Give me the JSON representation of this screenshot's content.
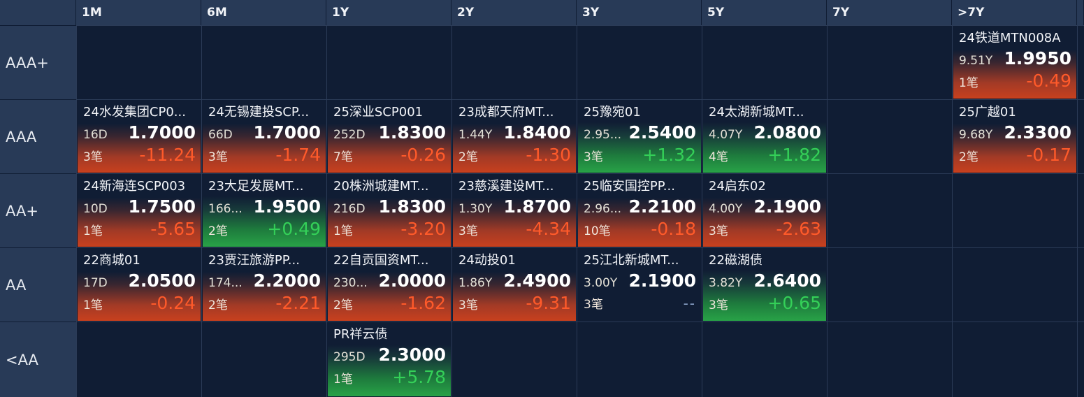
{
  "columns": [
    "1M",
    "6M",
    "1Y",
    "2Y",
    "3Y",
    "5Y",
    "7Y",
    ">7Y"
  ],
  "ratings": [
    "AAA+",
    "AAA",
    "AA+",
    "AA",
    "<AA"
  ],
  "cells": {
    "0_7": {
      "name": "24铁道MTN008A",
      "term": "9.51Y",
      "yield": "1.9950",
      "count": "1笔",
      "change": "-0.49",
      "dir": "neg"
    },
    "1_0": {
      "name": "24水发集团CP0...",
      "term": "16D",
      "yield": "1.7000",
      "count": "3笔",
      "change": "-11.24",
      "dir": "neg"
    },
    "1_1": {
      "name": "24无锡建投SCP...",
      "term": "66D",
      "yield": "1.7000",
      "count": "3笔",
      "change": "-1.74",
      "dir": "neg"
    },
    "1_2": {
      "name": "25深业SCP001",
      "term": "252D",
      "yield": "1.8300",
      "count": "7笔",
      "change": "-0.26",
      "dir": "neg"
    },
    "1_3": {
      "name": "23成都天府MT...",
      "term": "1.44Y",
      "yield": "1.8400",
      "count": "2笔",
      "change": "-1.30",
      "dir": "neg"
    },
    "1_4": {
      "name": "25豫宛01",
      "term": "2.95...",
      "yield": "2.5400",
      "count": "3笔",
      "change": "+1.32",
      "dir": "pos"
    },
    "1_5": {
      "name": "24太湖新城MT...",
      "term": "4.07Y",
      "yield": "2.0800",
      "count": "4笔",
      "change": "+1.82",
      "dir": "pos"
    },
    "1_7": {
      "name": "25广越01",
      "term": "9.68Y",
      "yield": "2.3300",
      "count": "2笔",
      "change": "-0.17",
      "dir": "neg"
    },
    "2_0": {
      "name": "24新海连SCP003",
      "term": "10D",
      "yield": "1.7500",
      "count": "1笔",
      "change": "-5.65",
      "dir": "neg"
    },
    "2_1": {
      "name": "23大足发展MT...",
      "term": "166...",
      "yield": "1.9500",
      "count": "2笔",
      "change": "+0.49",
      "dir": "pos"
    },
    "2_2": {
      "name": "20株洲城建MT...",
      "term": "216D",
      "yield": "1.8300",
      "count": "1笔",
      "change": "-3.20",
      "dir": "neg"
    },
    "2_3": {
      "name": "23慈溪建设MT...",
      "term": "1.30Y",
      "yield": "1.8700",
      "count": "3笔",
      "change": "-4.34",
      "dir": "neg"
    },
    "2_4": {
      "name": "25临安国控PP...",
      "term": "2.96...",
      "yield": "2.2100",
      "count": "10笔",
      "change": "-0.18",
      "dir": "neg"
    },
    "2_5": {
      "name": "24启东02",
      "term": "4.00Y",
      "yield": "2.1900",
      "count": "3笔",
      "change": "-2.63",
      "dir": "neg"
    },
    "3_0": {
      "name": "22商城01",
      "term": "17D",
      "yield": "2.0500",
      "count": "1笔",
      "change": "-0.24",
      "dir": "neg"
    },
    "3_1": {
      "name": "23贾汪旅游PP...",
      "term": "174...",
      "yield": "2.2000",
      "count": "2笔",
      "change": "-2.21",
      "dir": "neg"
    },
    "3_2": {
      "name": "22自贡国资MT...",
      "term": "230...",
      "yield": "2.0000",
      "count": "2笔",
      "change": "-1.62",
      "dir": "neg"
    },
    "3_3": {
      "name": "24动投01",
      "term": "1.86Y",
      "yield": "2.4900",
      "count": "3笔",
      "change": "-9.31",
      "dir": "neg"
    },
    "3_4": {
      "name": "25江北新城MT...",
      "term": "3.00Y",
      "yield": "2.1900",
      "count": "3笔",
      "change": "--",
      "dir": "none"
    },
    "3_5": {
      "name": "22磁湖债",
      "term": "3.82Y",
      "yield": "2.6400",
      "count": "3笔",
      "change": "+0.65",
      "dir": "pos"
    },
    "4_2": {
      "name": "PR祥云债",
      "term": "295D",
      "yield": "2.3000",
      "count": "1笔",
      "change": "+5.78",
      "dir": "pos"
    }
  },
  "colors": {
    "negative": "#ff5a2a",
    "positive": "#34d058",
    "neutral": "#8aa2c8",
    "background": "#101d34",
    "header": "#283a57"
  }
}
